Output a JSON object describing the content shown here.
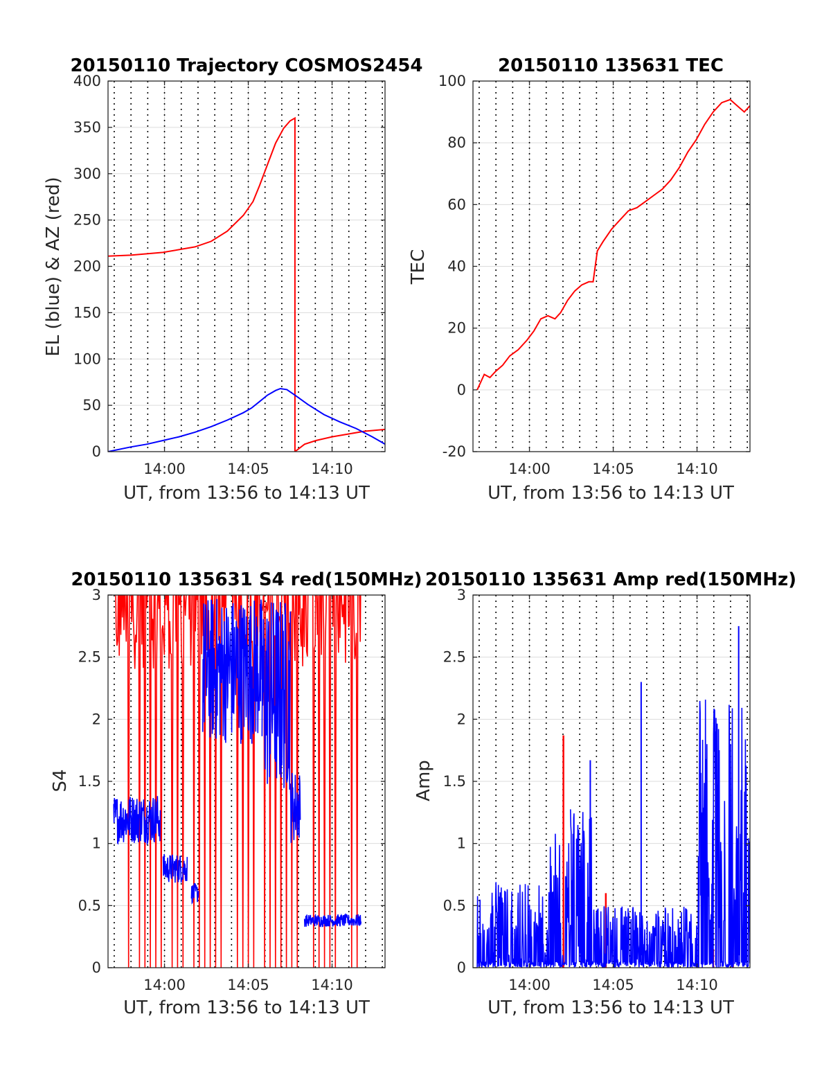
{
  "colors": {
    "red": "#ff0000",
    "blue": "#0000ff",
    "grid": "#dcdcdc",
    "axis": "#262626"
  },
  "chart_data": [
    {
      "id": "traj",
      "type": "line",
      "title": "20150110 Trajectory COSMOS2454",
      "xlabel": "UT, from 13:56 to 14:13 UT",
      "ylabel": "EL (blue) & AZ (red)",
      "xlim_min": [
        13.6,
        30.8
      ],
      "ylim": [
        0,
        400
      ],
      "xticks": [
        14,
        19,
        24
      ],
      "xticklabels": [
        "14:00",
        "14:05",
        "14:10"
      ],
      "yticks": [
        0,
        50,
        100,
        150,
        200,
        250,
        300,
        350,
        400
      ],
      "yticklabels": [
        "0",
        "50",
        "100",
        "150",
        "200",
        "250",
        "300",
        "350",
        "400"
      ],
      "grid": true,
      "series": [
        {
          "color": "red",
          "points": [
            [
              13.6,
              211
            ],
            [
              15,
              212
            ],
            [
              17,
              215
            ],
            [
              19,
              221
            ],
            [
              20,
              227
            ],
            [
              21,
              238
            ],
            [
              22,
              255
            ],
            [
              22.6,
              270
            ],
            [
              23,
              287
            ],
            [
              23.5,
              310
            ],
            [
              24,
              333
            ],
            [
              24.5,
              349
            ],
            [
              24.9,
              357
            ],
            [
              25.2,
              360
            ],
            [
              25.2,
              0
            ],
            [
              25.8,
              8
            ],
            [
              26.5,
              12
            ],
            [
              27.5,
              16
            ],
            [
              28.5,
              19
            ],
            [
              29.5,
              22
            ],
            [
              30.8,
              24
            ]
          ]
        },
        {
          "color": "blue",
          "points": [
            [
              13.6,
              0
            ],
            [
              15,
              5
            ],
            [
              16,
              8
            ],
            [
              17,
              12
            ],
            [
              18,
              16
            ],
            [
              19,
              21
            ],
            [
              20,
              27
            ],
            [
              21,
              34
            ],
            [
              22,
              42
            ],
            [
              22.5,
              47
            ],
            [
              23,
              54
            ],
            [
              23.5,
              61
            ],
            [
              24,
              66
            ],
            [
              24.3,
              68
            ],
            [
              24.7,
              67
            ],
            [
              25.2,
              61
            ],
            [
              26,
              51
            ],
            [
              27,
              40
            ],
            [
              28,
              32
            ],
            [
              29,
              25
            ],
            [
              30,
              16
            ],
            [
              30.8,
              8
            ],
            [
              31.5,
              3
            ]
          ]
        }
      ]
    },
    {
      "id": "tec",
      "type": "line",
      "title": "20150110 135631 TEC",
      "xlabel": "UT, from 13:56 to 14:13 UT",
      "ylabel": "TEC",
      "xlim_min": [
        13.6,
        30.8
      ],
      "ylim": [
        -20,
        100
      ],
      "xticks": [
        14,
        19,
        24
      ],
      "xticklabels": [
        "14:00",
        "14:05",
        "14:10"
      ],
      "yticks": [
        -20,
        0,
        20,
        40,
        60,
        80,
        100
      ],
      "yticklabels": [
        "-20",
        "0",
        "20",
        "40",
        "60",
        "80",
        "100"
      ],
      "grid": true,
      "series": [
        {
          "color": "red",
          "points": [
            [
              13.9,
              0
            ],
            [
              14.4,
              5
            ],
            [
              14.8,
              4
            ],
            [
              15.2,
              6
            ],
            [
              15.7,
              8
            ],
            [
              16.2,
              11
            ],
            [
              16.8,
              13
            ],
            [
              17.4,
              16
            ],
            [
              17.9,
              19
            ],
            [
              18.4,
              23
            ],
            [
              18.9,
              24
            ],
            [
              19.4,
              23
            ],
            [
              19.8,
              25
            ],
            [
              20.3,
              29
            ],
            [
              20.8,
              32
            ],
            [
              21.3,
              34
            ],
            [
              21.8,
              35
            ],
            [
              22.1,
              35
            ],
            [
              22.4,
              45
            ],
            [
              22.8,
              48
            ],
            [
              23.4,
              52
            ],
            [
              24.0,
              55
            ],
            [
              24.6,
              58
            ],
            [
              25.2,
              59
            ],
            [
              25.8,
              61
            ],
            [
              26.4,
              63
            ],
            [
              27.0,
              65
            ],
            [
              27.6,
              68
            ],
            [
              28.2,
              72
            ],
            [
              28.8,
              77
            ],
            [
              29.4,
              81
            ],
            [
              30.0,
              86
            ],
            [
              30.6,
              90
            ],
            [
              31.2,
              93
            ],
            [
              31.8,
              94
            ],
            [
              32.3,
              92
            ],
            [
              32.8,
              90
            ],
            [
              33.2,
              92
            ]
          ]
        }
      ]
    },
    {
      "id": "s4",
      "type": "line",
      "title": "20150110 135631 S4 red(150MHz)",
      "xlabel": "UT, from 13:56 to 14:13 UT",
      "ylabel": "S4",
      "xlim_min": [
        13.6,
        30.8
      ],
      "ylim": [
        0,
        3
      ],
      "xticks": [
        14,
        19,
        24
      ],
      "xticklabels": [
        "14:00",
        "14:05",
        "14:10"
      ],
      "yticks": [
        0,
        0.5,
        1,
        1.5,
        2,
        2.5,
        3
      ],
      "yticklabels": [
        "0",
        "0.5",
        "1",
        "1.5",
        "2",
        "2.5",
        "3"
      ],
      "grid": true,
      "series": [
        {
          "color": "red",
          "noise": {
            "x0": 13.9,
            "x1": 31.5,
            "base": 2.7,
            "amp": 0.5,
            "dropEvery": 7,
            "n": 320
          }
        },
        {
          "color": "blue",
          "segments": [
            {
              "x0": 14.0,
              "x1": 17.3,
              "base": 1.2,
              "amp": 0.2
            },
            {
              "x0": 17.5,
              "x1": 19.2,
              "base": 0.8,
              "amp": 0.12
            },
            {
              "x0": 19.5,
              "x1": 20.0,
              "base": 0.6,
              "amp": 0.08
            },
            {
              "x0": 20.3,
              "x1": 24.5,
              "base": 2.4,
              "amp": 0.6
            },
            {
              "x0": 24.5,
              "x1": 26.5,
              "base": 2.2,
              "amp": 0.8
            },
            {
              "x0": 26.5,
              "x1": 27.2,
              "base": 1.3,
              "amp": 0.3
            },
            {
              "x0": 27.5,
              "x1": 31.5,
              "base": 0.38,
              "amp": 0.05
            }
          ]
        }
      ]
    },
    {
      "id": "amp",
      "type": "line",
      "title": "20150110 135631 Amp red(150MHz)",
      "xlabel": "UT, from 13:56 to 14:13 UT",
      "ylabel": "Amp",
      "xlim_min": [
        13.6,
        30.8
      ],
      "ylim": [
        0,
        3
      ],
      "xticks": [
        14,
        19,
        24
      ],
      "xticklabels": [
        "14:00",
        "14:05",
        "14:10"
      ],
      "yticks": [
        0,
        0.5,
        1,
        1.5,
        2,
        2.5,
        3
      ],
      "yticklabels": [
        "0",
        "0.5",
        "1",
        "1.5",
        "2",
        "2.5",
        "3"
      ],
      "grid": true,
      "series": [
        {
          "color": "red",
          "spikes": [
            [
              20.0,
              1.87
            ],
            [
              23.0,
              0.6
            ],
            [
              30.6,
              0.15
            ],
            [
              32.0,
              0.12
            ]
          ]
        },
        {
          "color": "blue",
          "segments": [
            {
              "x0": 13.9,
              "x1": 19.0,
              "base": 0.35,
              "amp": 0.35
            },
            {
              "x0": 19.0,
              "x1": 20.5,
              "base": 0.6,
              "amp": 0.5
            },
            {
              "x0": 20.5,
              "x1": 22.0,
              "base": 0.75,
              "amp": 0.7
            },
            {
              "x0": 22.0,
              "x1": 29.5,
              "base": 0.25,
              "amp": 0.25
            },
            {
              "x0": 29.5,
              "x1": 33.2,
              "base": 1.2,
              "amp": 1.0
            }
          ],
          "peaks": [
            [
              21.9,
              1.67
            ],
            [
              25.5,
              2.3
            ],
            [
              32.4,
              2.75
            ]
          ]
        }
      ]
    }
  ]
}
